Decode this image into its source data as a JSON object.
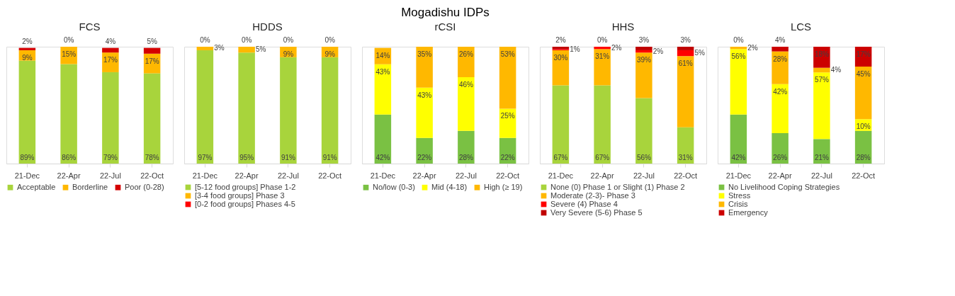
{
  "chart_data": [
    {
      "type": "bar",
      "title": "FCS",
      "stacked": true,
      "legend": "bottom",
      "annotations": [
        "Mogadishu IDPs"
      ],
      "categories": [
        "21-Dec",
        "22-Apr",
        "22-Jul",
        "22-Oct"
      ],
      "series": [
        {
          "name": "Acceptable",
          "color": "#a8d43c",
          "values": [
            89,
            86,
            79,
            78
          ],
          "value_labels": [
            "89%",
            "86%",
            "79%",
            "78%"
          ]
        },
        {
          "name": "Borderline",
          "color": "#ffb800",
          "values": [
            9,
            15,
            17,
            17
          ],
          "value_labels": [
            "9%",
            "15%",
            "17%",
            "17%"
          ]
        },
        {
          "name": "Poor (0-28)",
          "color": "#d40000",
          "values": [
            2,
            0,
            4,
            5
          ],
          "value_labels": [
            "2%",
            "0%",
            "4%",
            "5%"
          ]
        }
      ]
    },
    {
      "type": "bar",
      "title": "HDDS",
      "stacked": true,
      "legend": "bottom",
      "categories": [
        "21-Dec",
        "22-Apr",
        "22-Jul",
        "22-Oct"
      ],
      "series": [
        {
          "name": "[5-12 food groups] Phase 1-2",
          "color": "#a8d43c",
          "values": [
            97,
            95,
            91,
            91
          ],
          "value_labels": [
            "97%",
            "95%",
            "91%",
            "91%"
          ]
        },
        {
          "name": "[3-4 food groups] Phase 3",
          "color": "#ffb800",
          "values": [
            3,
            5,
            9,
            9
          ],
          "value_labels": [
            "3%",
            "5%",
            "9%",
            "9%"
          ]
        },
        {
          "name": "[0-2 food groups] Phases 4-5",
          "color": "#ff0000",
          "values": [
            0,
            0,
            0,
            0
          ],
          "value_labels": [
            "0%",
            "0%",
            "0%",
            "0%"
          ]
        }
      ]
    },
    {
      "type": "bar",
      "title": "rCSI",
      "stacked": true,
      "legend": "bottom",
      "categories": [
        "21-Dec",
        "22-Apr",
        "22-Jul",
        "22-Oct"
      ],
      "series": [
        {
          "name": "No/low (0-3)",
          "color": "#7ac143",
          "values": [
            42,
            22,
            28,
            22
          ],
          "value_labels": [
            "42%",
            "22%",
            "28%",
            "22%"
          ]
        },
        {
          "name": "Mid (4-18)",
          "color": "#ffff00",
          "values": [
            43,
            43,
            46,
            25
          ],
          "value_labels": [
            "43%",
            "43%",
            "46%",
            "25%"
          ]
        },
        {
          "name": "High (≥ 19)",
          "color": "#ffb800",
          "values": [
            14,
            35,
            26,
            53
          ],
          "value_labels": [
            "14%",
            "35%",
            "26%",
            "53%"
          ]
        }
      ]
    },
    {
      "type": "bar",
      "title": "HHS",
      "stacked": true,
      "legend": "bottom",
      "categories": [
        "21-Dec",
        "22-Apr",
        "22-Jul",
        "22-Oct"
      ],
      "series": [
        {
          "name": "None (0) Phase 1 or Slight (1) Phase 2",
          "color": "#a8d43c",
          "values": [
            67,
            67,
            56,
            31
          ],
          "value_labels": [
            "67%",
            "67%",
            "56%",
            "31%"
          ]
        },
        {
          "name": "Moderate (2-3)- Phase 3",
          "color": "#ffb800",
          "values": [
            30,
            31,
            39,
            61
          ],
          "value_labels": [
            "30%",
            "31%",
            "39%",
            "61%"
          ]
        },
        {
          "name": "Severe (4)   Phase 4",
          "color": "#ff0000",
          "values": [
            1,
            2,
            2,
            5
          ],
          "value_labels": [
            "1%",
            "2%",
            "2%",
            "5%"
          ]
        },
        {
          "name": "Very Severe (5-6)    Phase 5",
          "color": "#c00000",
          "values": [
            2,
            0,
            3,
            3
          ],
          "value_labels": [
            "2%",
            "0%",
            "3%",
            "3%"
          ]
        }
      ]
    },
    {
      "type": "bar",
      "title": "LCS",
      "stacked": true,
      "legend": "bottom",
      "categories": [
        "21-Dec",
        "22-Apr",
        "22-Jul",
        "22-Oct"
      ],
      "series": [
        {
          "name": "No Livelihood Coping Strategies",
          "color": "#7ac143",
          "values": [
            42,
            26,
            21,
            28
          ],
          "value_labels": [
            "42%",
            "26%",
            "21%",
            "28%"
          ]
        },
        {
          "name": "Stress",
          "color": "#ffff00",
          "values": [
            56,
            42,
            57,
            10
          ],
          "value_labels": [
            "56%",
            "42%",
            "57%",
            "10%"
          ]
        },
        {
          "name": "Crisis",
          "color": "#ffb800",
          "values": [
            2,
            28,
            4,
            45
          ],
          "value_labels": [
            "2%",
            "28%",
            "4%",
            "45%"
          ]
        },
        {
          "name": "Emergency",
          "color": "#cc0000",
          "values": [
            0,
            4,
            18,
            17
          ],
          "value_labels": [
            "0%",
            "4%",
            "18%",
            "17%"
          ]
        }
      ]
    }
  ]
}
